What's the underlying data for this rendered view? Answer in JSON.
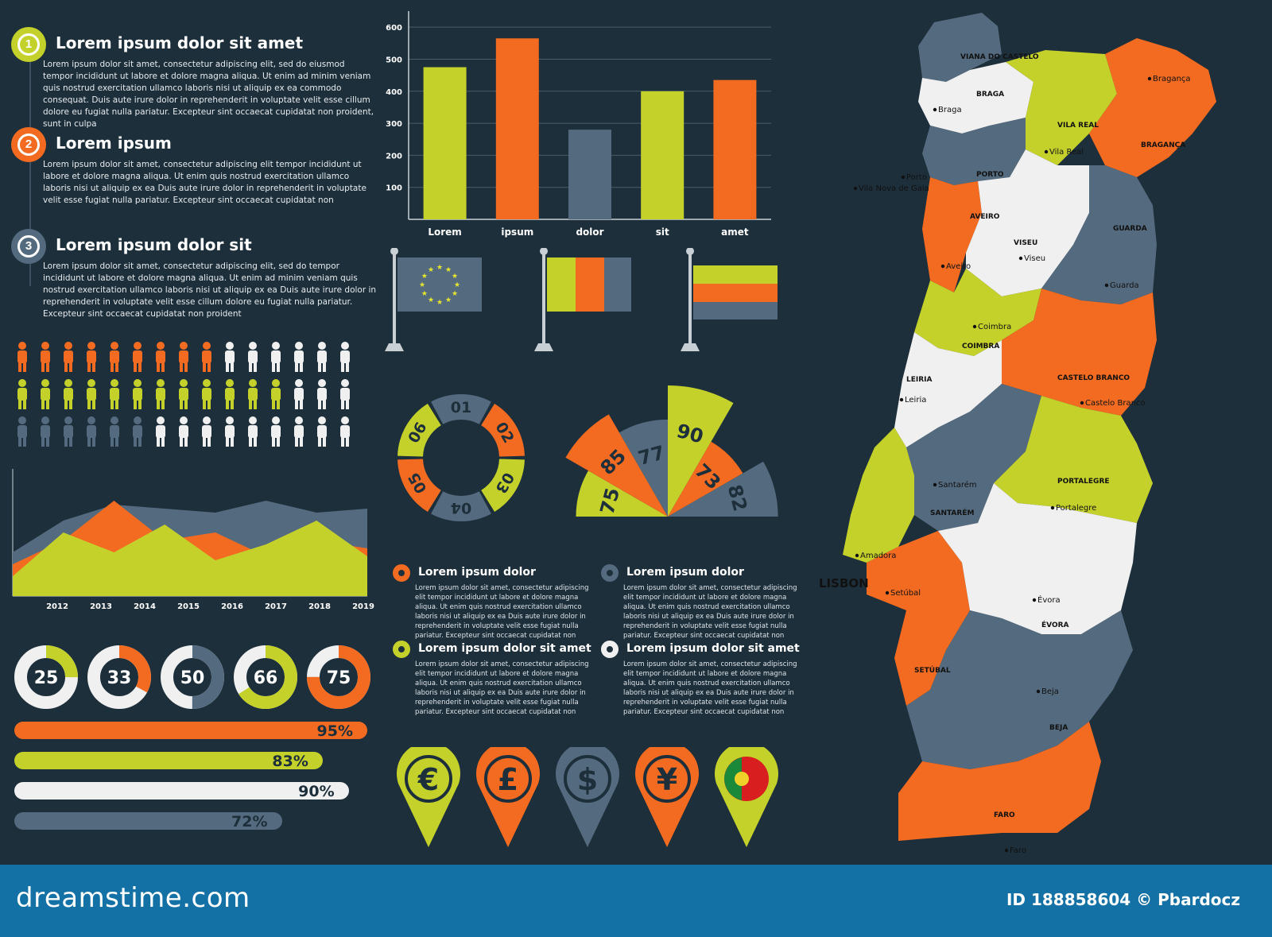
{
  "colors": {
    "background": "#1d2f3b",
    "yellow": "#c5d12b",
    "orange": "#f26b21",
    "slate": "#546a7e",
    "white": "#f0f0f0",
    "footer": "#1471a6"
  },
  "steps": [
    {
      "number": "1",
      "title": "Lorem ipsum dolor sit amet",
      "color": "#c5d12b",
      "body": "Lorem ipsum dolor sit amet, consectetur adipiscing elit, sed do eiusmod tempor incididunt ut labore et dolore magna aliqua. Ut enim ad minim veniam quis nostrud exercitation ullamco laboris nisi ut aliquip ex ea commodo consequat. Duis aute irure dolor in reprehenderit in voluptate velit esse cillum dolore eu fugiat nulla pariatur. Excepteur sint occaecat cupidatat non proident, sunt in culpa"
    },
    {
      "number": "2",
      "title": "Lorem ipsum",
      "color": "#f26b21",
      "body": "Lorem ipsum dolor sit amet, consectetur adipiscing elit tempor incididunt ut labore et dolore magna aliqua. Ut enim quis nostrud exercitation ullamco laboris nisi ut aliquip ex ea Duis aute irure dolor in reprehenderit in voluptate velit esse fugiat nulla pariatur. Excepteur sint occaecat cupidatat non"
    },
    {
      "number": "3",
      "title": "Lorem ipsum dolor sit",
      "color": "#546a7e",
      "body": "Lorem ipsum dolor sit amet, consectetur adipiscing elit, sed do tempor incididunt ut labore et dolore magna aliqua. Ut enim ad minim veniam quis nostrud exercitation ullamco laboris nisi ut aliquip ex ea Duis aute irure dolor in reprehenderit in voluptate velit esse cillum dolore eu fugiat nulla pariatur. Excepteur sint occaecat cupidatat non proident"
    }
  ],
  "people_rows": [
    {
      "filled": 9,
      "total": 15,
      "color": "#f26b21"
    },
    {
      "filled": 12,
      "total": 15,
      "color": "#c5d12b"
    },
    {
      "filled": 6,
      "total": 15,
      "color": "#546a7e"
    }
  ],
  "info_blocks": [
    {
      "title": "Lorem ipsum dolor",
      "ring": "#f26b21",
      "body": "Lorem ipsum dolor sit amet, consectetur adipiscing elit tempor incididunt ut labore et dolore magna aliqua. Ut enim quis nostrud exercitation ullamco laboris nisi ut aliquip ex ea Duis aute irure dolor in reprehenderit in voluptate velit esse fugiat nulla pariatur. Excepteur sint occaecat cupidatat non"
    },
    {
      "title": "Lorem ipsum dolor",
      "ring": "#546a7e",
      "body": "Lorem ipsum dolor sit amet, consectetur adipiscing elit tempor incididunt ut labore et dolore magna aliqua. Ut enim quis nostrud exercitation ullamco laboris nisi ut aliquip ex ea Duis aute irure dolor in reprehenderit in voluptate velit esse fugiat nulla pariatur. Excepteur sint occaecat cupidatat non"
    },
    {
      "title": "Lorem ipsum dolor sit amet",
      "ring": "#c5d12b",
      "body": "Lorem ipsum dolor sit amet, consectetur adipiscing elit tempor incididunt ut labore et dolore magna aliqua. Ut enim quis nostrud exercitation ullamco laboris nisi ut aliquip ex ea Duis aute irure dolor in reprehenderit in voluptate velit esse fugiat nulla pariatur. Excepteur sint occaecat cupidatat non"
    },
    {
      "title": "Lorem ipsum dolor sit amet",
      "ring": "#f0f0f0",
      "body": "Lorem ipsum dolor sit amet, consectetur adipiscing elit tempor incididunt ut labore et dolore magna aliqua. Ut enim quis nostrud exercitation ullamco laboris nisi ut aliquip ex ea Duis aute irure dolor in reprehenderit in voluptate velit esse fugiat nulla pariatur. Excepteur sint occaecat cupidatat non"
    }
  ],
  "currency_pins": [
    {
      "symbol": "€",
      "icon": "euro-icon",
      "color": "#c5d12b"
    },
    {
      "symbol": "£",
      "icon": "pound-icon",
      "color": "#f26b21"
    },
    {
      "symbol": "$",
      "icon": "dollar-icon",
      "color": "#546a7e"
    },
    {
      "symbol": "¥",
      "icon": "yen-icon",
      "color": "#f26b21"
    },
    {
      "symbol": "",
      "icon": "portugal-flag-icon",
      "color": "#c5d12b"
    }
  ],
  "flags": [
    {
      "icon": "eu-flag-icon"
    },
    {
      "icon": "tricolor-vertical-flag-icon"
    },
    {
      "icon": "tricolor-horizontal-flag-icon"
    }
  ],
  "footer": {
    "logo": "dreamstime.com",
    "credit": "ID 188858604 © Pbardocz"
  },
  "map": {
    "icon": "portugal-district-map",
    "labels": [
      {
        "text": "VIANA DO CASTELO"
      },
      {
        "text": "BRAGA"
      },
      {
        "text": "Braga"
      },
      {
        "text": "VILA REAL"
      },
      {
        "text": "Vila Real"
      },
      {
        "text": "Bragança"
      },
      {
        "text": "BRAGANÇA"
      },
      {
        "text": "PORTO"
      },
      {
        "text": "Porto"
      },
      {
        "text": "Vila Nova de Gaia"
      },
      {
        "text": "AVEIRO"
      },
      {
        "text": "Aveiro"
      },
      {
        "text": "VISEU"
      },
      {
        "text": "Viseu"
      },
      {
        "text": "GUARDA"
      },
      {
        "text": "Guarda"
      },
      {
        "text": "Coimbra"
      },
      {
        "text": "COIMBRA"
      },
      {
        "text": "CASTELO BRANCO"
      },
      {
        "text": "Castelo Branco"
      },
      {
        "text": "LEIRIA"
      },
      {
        "text": "Leiria"
      },
      {
        "text": "SANTARÉM"
      },
      {
        "text": "Santarém"
      },
      {
        "text": "PORTALEGRE"
      },
      {
        "text": "Portalegre"
      },
      {
        "text": "LISBON"
      },
      {
        "text": "Amadora"
      },
      {
        "text": "Setúbal"
      },
      {
        "text": "SETÚBAL"
      },
      {
        "text": "ÉVORA"
      },
      {
        "text": "Évora"
      },
      {
        "text": "BEJA"
      },
      {
        "text": "Beja"
      },
      {
        "text": "FARO"
      },
      {
        "text": "Faro"
      }
    ]
  },
  "chart_data": [
    {
      "type": "bar",
      "categories": [
        "Lorem",
        "ipsum",
        "dolor",
        "sit",
        "amet"
      ],
      "values": [
        475,
        565,
        280,
        400,
        435
      ],
      "colors": [
        "#c5d12b",
        "#f26b21",
        "#546a7e",
        "#c5d12b",
        "#f26b21"
      ],
      "yticks": [
        100,
        200,
        300,
        400,
        500,
        600
      ],
      "ylim": [
        0,
        650
      ],
      "grid": true
    },
    {
      "type": "area",
      "x": [
        "2012",
        "2013",
        "2014",
        "2015",
        "2016",
        "2017",
        "2018",
        "2019"
      ],
      "series": [
        {
          "color": "#546a7e",
          "values": [
            55,
            95,
            115,
            110,
            105,
            120,
            105,
            110
          ]
        },
        {
          "color": "#f26b21",
          "values": [
            40,
            70,
            120,
            70,
            80,
            50,
            70,
            60
          ]
        },
        {
          "color": "#c5d12b",
          "values": [
            25,
            80,
            55,
            90,
            45,
            65,
            95,
            50
          ]
        }
      ],
      "ylim": [
        0,
        160
      ]
    },
    {
      "type": "pie",
      "subtype": "segmented-ring",
      "labels": [
        "01",
        "02",
        "03",
        "04",
        "05",
        "06"
      ],
      "values": [
        1,
        1,
        1,
        1,
        1,
        1
      ],
      "colors": [
        "#546a7e",
        "#f26b21",
        "#c5d12b",
        "#546a7e",
        "#f26b21",
        "#c5d12b"
      ]
    },
    {
      "type": "pie",
      "subtype": "radial-half",
      "labels": [
        "75",
        "85",
        "77",
        "90",
        "73",
        "82"
      ],
      "values": [
        75,
        85,
        77,
        90,
        73,
        82
      ],
      "colors": [
        "#c5d12b",
        "#f26b21",
        "#546a7e",
        "#c5d12b",
        "#f26b21",
        "#546a7e"
      ]
    },
    {
      "type": "pie",
      "subtype": "donut-set",
      "values": [
        25,
        33,
        50,
        66,
        75
      ],
      "labels": [
        "25",
        "33",
        "50",
        "66",
        "75"
      ],
      "colors": [
        "#c5d12b",
        "#f26b21",
        "#546a7e",
        "#c5d12b",
        "#f26b21"
      ]
    },
    {
      "type": "bar",
      "subtype": "progress-horizontal",
      "values": [
        95,
        83,
        90,
        72
      ],
      "labels": [
        "95%",
        "83%",
        "90%",
        "72%"
      ],
      "colors": [
        "#f26b21",
        "#c5d12b",
        "#f0f0f0",
        "#546a7e"
      ]
    }
  ]
}
